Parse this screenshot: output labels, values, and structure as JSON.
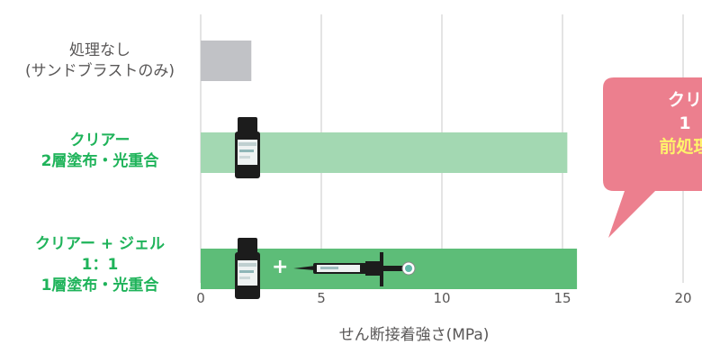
{
  "chart_data": {
    "type": "bar",
    "orientation": "horizontal",
    "categories": [
      [
        "処理なし",
        "(サンドブラストのみ)"
      ],
      [
        "クリアー",
        "2層塗布・光重合"
      ],
      [
        "クリアー + ジェル",
        "1：1",
        "1層塗布・光重合"
      ]
    ],
    "values": [
      2.1,
      15.2,
      15.6
    ],
    "bar_colors": [
      "#c1c2c6",
      "#a3d8b2",
      "#5dbd78"
    ],
    "xlabel": "せん断接着強さ(MPa)",
    "xticks": [
      "0",
      "5",
      "10",
      "15",
      "20"
    ],
    "xlim": [
      0,
      20
    ],
    "grid": true
  },
  "callout": {
    "lines": [
      "クリ",
      "1",
      "前処理"
    ],
    "color": "#ec7f8e",
    "highlight_color": "#fff36b"
  },
  "plus_sign": "+",
  "product_icons": [
    "bottle-icon",
    "bottle-icon",
    "syringe-icon"
  ],
  "colors": {
    "label_gray": "#595757",
    "label_green": "#1fb35a",
    "grid": "#d3d3d3"
  }
}
